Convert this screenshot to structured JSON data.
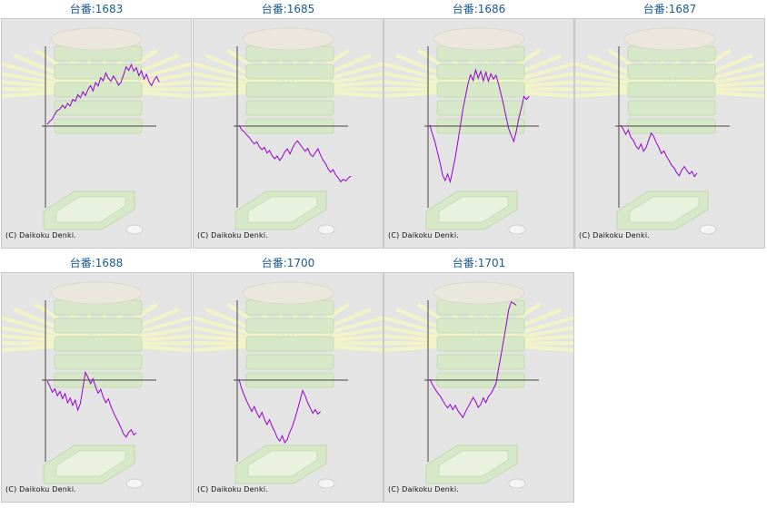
{
  "copyright": "(C) Daikoku Denki.",
  "colors": {
    "title": "#1a5a96",
    "line": "#9400d3",
    "axis": "#444444",
    "panel": "#e4e4e4"
  },
  "machines": [
    {
      "title": "台番:1683",
      "series": [
        0.4,
        1.1,
        1.6,
        2.8,
        3.6,
        3.9,
        4.8,
        4.1,
        5.2,
        4.6,
        6.1,
        5.7,
        7.2,
        6.5,
        7.9,
        7.0,
        8.4,
        9.3,
        8.1,
        10.0,
        9.2,
        11.1,
        10.4,
        12.2,
        11.0,
        10.3,
        11.5,
        10.6,
        9.4,
        10.1,
        11.8,
        13.6,
        12.8,
        14.1,
        12.6,
        13.4,
        11.6,
        12.7,
        10.8,
        11.9,
        10.2,
        9.3,
        10.6,
        11.4,
        10.1
      ]
    },
    {
      "title": "台番:1685",
      "series": [
        0.2,
        -0.8,
        -1.3,
        -2.0,
        -2.6,
        -3.4,
        -4.1,
        -3.6,
        -4.8,
        -5.4,
        -4.9,
        -6.2,
        -5.6,
        -6.8,
        -7.5,
        -6.9,
        -7.9,
        -7.1,
        -5.9,
        -5.2,
        -6.4,
        -5.1,
        -4.0,
        -3.4,
        -4.2,
        -5.0,
        -5.8,
        -5.1,
        -6.5,
        -7.0,
        -6.1,
        -5.2,
        -6.6,
        -7.8,
        -8.6,
        -9.8,
        -10.6,
        -10.0,
        -11.2,
        -11.9,
        -12.8,
        -12.2,
        -12.6,
        -11.9,
        -11.5
      ]
    },
    {
      "title": "台番:1686",
      "series": [
        0.3,
        -1.8,
        -3.6,
        -6.0,
        -8.4,
        -11.2,
        -12.5,
        -11.0,
        -12.8,
        -10.1,
        -7.2,
        -3.6,
        0.1,
        3.9,
        6.8,
        9.7,
        11.8,
        10.5,
        12.9,
        11.0,
        12.6,
        10.4,
        12.4,
        10.3,
        12.0,
        10.8,
        11.7,
        9.6,
        7.3,
        4.8,
        2.0,
        -0.6,
        -2.2,
        -3.5,
        -1.1,
        1.9,
        4.2,
        6.8,
        6.1,
        6.9
      ]
    },
    {
      "title": "台番:1687",
      "series": [
        0.2,
        -0.7,
        -1.9,
        -0.9,
        -2.6,
        -3.3,
        -4.6,
        -5.3,
        -4.1,
        -5.8,
        -4.9,
        -3.2,
        -1.6,
        -2.4,
        -3.8,
        -4.9,
        -6.3,
        -5.7,
        -7.0,
        -7.9,
        -9.0,
        -9.6,
        -10.7,
        -11.4,
        -10.1,
        -9.3,
        -10.2,
        -11.0,
        -10.4,
        -11.6,
        -10.8
      ]
    },
    {
      "title": "台番:1688",
      "series": [
        -0.2,
        -1.4,
        -2.8,
        -2.0,
        -3.6,
        -2.6,
        -4.3,
        -3.1,
        -5.2,
        -4.1,
        -5.8,
        -4.6,
        -6.9,
        -5.4,
        -1.8,
        1.8,
        0.6,
        -0.8,
        0.3,
        -1.6,
        -3.0,
        -2.1,
        -3.9,
        -5.2,
        -4.3,
        -6.0,
        -7.4,
        -8.6,
        -9.7,
        -11.0,
        -12.4,
        -13.1,
        -12.0,
        -11.4,
        -12.6,
        -12.1
      ]
    },
    {
      "title": "台番:1700",
      "series": [
        0.2,
        -1.9,
        -3.4,
        -4.8,
        -6.0,
        -7.2,
        -6.1,
        -7.5,
        -8.6,
        -7.4,
        -9.0,
        -10.2,
        -9.1,
        -10.6,
        -11.8,
        -13.2,
        -14.0,
        -12.8,
        -14.4,
        -13.6,
        -11.9,
        -10.6,
        -8.8,
        -6.8,
        -4.6,
        -2.4,
        -3.6,
        -5.2,
        -6.4,
        -7.6,
        -6.8,
        -7.8,
        -7.2
      ]
    },
    {
      "title": "台番:1701",
      "series": [
        0.2,
        -1.0,
        -2.0,
        -2.9,
        -3.6,
        -4.6,
        -5.6,
        -6.4,
        -5.6,
        -6.8,
        -5.8,
        -7.0,
        -7.8,
        -8.6,
        -7.3,
        -6.2,
        -5.1,
        -4.0,
        -4.9,
        -6.3,
        -5.6,
        -4.1,
        -5.2,
        -3.8,
        -3.1,
        -2.0,
        -0.8,
        2.6,
        5.8,
        9.2,
        12.6,
        16.2,
        18.0,
        17.6,
        17.2
      ]
    }
  ]
}
